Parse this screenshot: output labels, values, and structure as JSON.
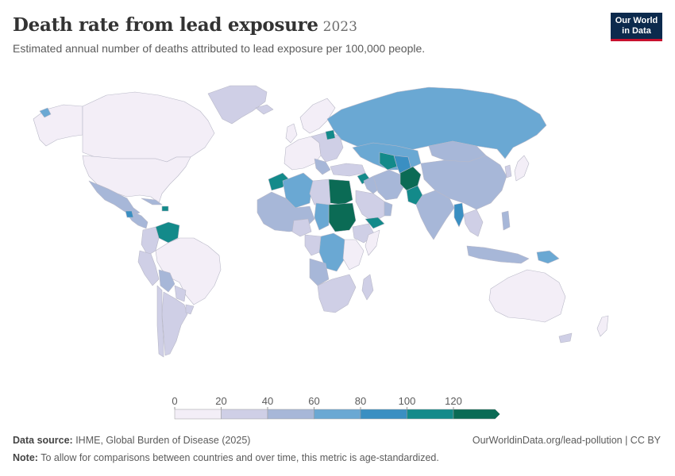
{
  "header": {
    "title": "Death rate from lead exposure",
    "year": "2023",
    "subtitle": "Estimated annual number of deaths attributed to lead exposure per 100,000 people."
  },
  "logo": {
    "line1": "Our World",
    "line2": "in Data"
  },
  "legend": {
    "ticks": [
      "0",
      "20",
      "40",
      "60",
      "80",
      "100",
      "120"
    ],
    "colors": [
      "#f3eef7",
      "#cfcfe6",
      "#a7b7d8",
      "#6aa8d3",
      "#3a8fc2",
      "#138a8a",
      "#0b6b55"
    ]
  },
  "map_colors": {
    "ocean": "#ffffff",
    "border": "#b9b9c8",
    "low": "#f3eef7",
    "c1": "#cfcfe6",
    "c2": "#a7b7d8",
    "c3": "#6aa8d3",
    "c4": "#3a8fc2",
    "c5": "#138a8a",
    "c6": "#0b6b55"
  },
  "footer": {
    "source_label": "Data source:",
    "source_text": " IHME, Global Burden of Disease (2025)",
    "link": "OurWorldinData.org/lead-pollution | CC BY",
    "note_label": "Note:",
    "note_text": " To allow for comparisons between countries and over time, this metric is age-standardized."
  }
}
